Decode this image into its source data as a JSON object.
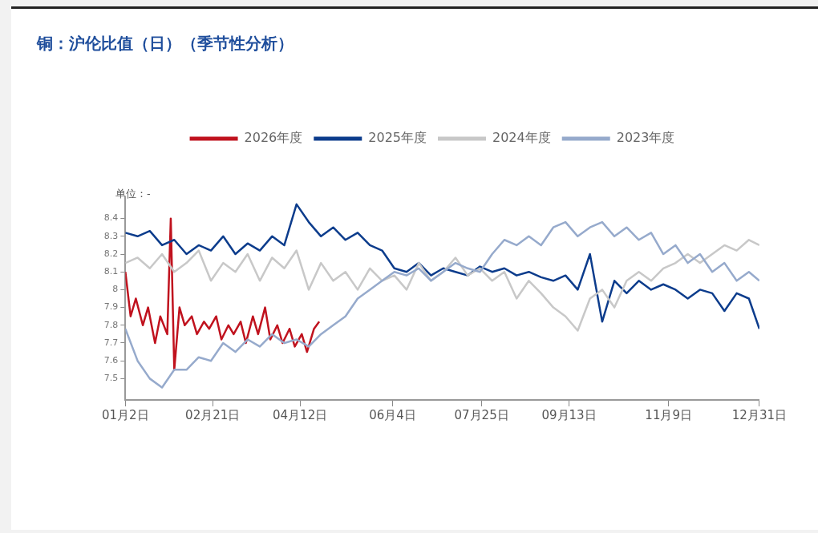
{
  "chart_data": {
    "type": "line",
    "title": "铜：沪伦比值（日）（季节性分析）",
    "annotations": [
      "单位：-"
    ],
    "x": [
      "--01-02",
      "--01-09",
      "--01-16",
      "--01-23",
      "--01-30",
      "--02-06",
      "--02-13",
      "--02-20",
      "--02-27",
      "--03-06",
      "--03-13",
      "--03-20",
      "--03-27",
      "--04-03",
      "--04-10",
      "--04-17",
      "--04-24",
      "--05-01",
      "--05-08",
      "--05-15",
      "--05-22",
      "--05-29",
      "--06-05",
      "--06-12",
      "--06-19",
      "--06-26",
      "--07-03",
      "--07-10",
      "--07-17",
      "--07-24",
      "--07-31",
      "--08-07",
      "--08-14",
      "--08-21",
      "--08-28",
      "--09-04",
      "--09-11",
      "--09-18",
      "--09-25",
      "--10-02",
      "--10-09",
      "--10-16",
      "--10-23",
      "--10-30",
      "--11-06",
      "--11-13",
      "--11-20",
      "--11-27",
      "--12-04",
      "--12-11",
      "--12-18",
      "--12-25",
      "--12-31"
    ],
    "series": [
      {
        "name": "2026年度",
        "color": "#c0121e",
        "x": [
          "--01-02",
          "--01-05",
          "--01-08",
          "--01-12",
          "--01-15",
          "--01-19",
          "--01-22",
          "--01-26",
          "--01-28",
          "--01-30",
          "--02-02",
          "--02-05",
          "--02-09",
          "--02-12",
          "--02-16",
          "--02-19",
          "--02-23",
          "--02-26",
          "--03-02",
          "--03-05",
          "--03-09",
          "--03-12",
          "--03-16",
          "--03-19",
          "--03-23",
          "--03-26",
          "--03-30",
          "--04-02",
          "--04-06",
          "--04-09",
          "--04-13",
          "--04-16",
          "--04-20",
          "--04-23"
        ],
        "values": [
          8.1,
          7.85,
          7.95,
          7.8,
          7.9,
          7.7,
          7.85,
          7.75,
          8.4,
          7.55,
          7.9,
          7.8,
          7.85,
          7.75,
          7.82,
          7.78,
          7.85,
          7.72,
          7.8,
          7.75,
          7.82,
          7.7,
          7.85,
          7.75,
          7.9,
          7.72,
          7.8,
          7.7,
          7.78,
          7.68,
          7.75,
          7.65,
          7.78,
          7.82
        ]
      },
      {
        "name": "2025年度",
        "color": "#0c3c8c",
        "values": [
          8.32,
          8.3,
          8.33,
          8.25,
          8.28,
          8.2,
          8.25,
          8.22,
          8.3,
          8.2,
          8.26,
          8.22,
          8.3,
          8.25,
          8.48,
          8.38,
          8.3,
          8.35,
          8.28,
          8.32,
          8.25,
          8.22,
          8.12,
          8.1,
          8.15,
          8.08,
          8.12,
          8.1,
          8.08,
          8.13,
          8.1,
          8.12,
          8.08,
          8.1,
          8.07,
          8.05,
          8.08,
          8.0,
          8.2,
          7.82,
          8.05,
          7.98,
          8.05,
          8.0,
          8.03,
          8.0,
          7.95,
          8.0,
          7.98,
          7.88,
          7.98,
          7.95,
          7.78
        ]
      },
      {
        "name": "2024年度",
        "color": "#c8c8c8",
        "values": [
          8.15,
          8.18,
          8.12,
          8.2,
          8.1,
          8.15,
          8.22,
          8.05,
          8.15,
          8.1,
          8.2,
          8.05,
          8.18,
          8.12,
          8.22,
          8.0,
          8.15,
          8.05,
          8.1,
          8.0,
          8.12,
          8.05,
          8.08,
          8.0,
          8.15,
          8.05,
          8.1,
          8.18,
          8.08,
          8.12,
          8.05,
          8.1,
          7.95,
          8.05,
          7.98,
          7.9,
          7.85,
          7.77,
          7.95,
          8.0,
          7.9,
          8.05,
          8.1,
          8.05,
          8.12,
          8.15,
          8.2,
          8.15,
          8.2,
          8.25,
          8.22,
          8.28,
          8.25
        ]
      },
      {
        "name": "2023年度",
        "color": "#96aacc",
        "values": [
          7.78,
          7.6,
          7.5,
          7.45,
          7.55,
          7.55,
          7.62,
          7.6,
          7.7,
          7.65,
          7.72,
          7.68,
          7.75,
          7.7,
          7.72,
          7.68,
          7.75,
          7.8,
          7.85,
          7.95,
          8.0,
          8.05,
          8.1,
          8.08,
          8.12,
          8.05,
          8.1,
          8.15,
          8.12,
          8.1,
          8.2,
          8.28,
          8.25,
          8.3,
          8.25,
          8.35,
          8.38,
          8.3,
          8.35,
          8.38,
          8.3,
          8.35,
          8.28,
          8.32,
          8.2,
          8.25,
          8.15,
          8.2,
          8.1,
          8.15,
          8.05,
          8.1,
          8.05
        ]
      }
    ],
    "xlim": [
      "--01-02",
      "--12-31"
    ],
    "xticks": [
      {
        "value": "--01-02",
        "label": "01月2日"
      },
      {
        "value": "--02-21",
        "label": "02月21日"
      },
      {
        "value": "--04-12",
        "label": "04月12日"
      },
      {
        "value": "--06-04",
        "label": "06月4日"
      },
      {
        "value": "--07-25",
        "label": "07月25日"
      },
      {
        "value": "--09-13",
        "label": "09月13日"
      },
      {
        "value": "--11-09",
        "label": "11月9日"
      },
      {
        "value": "--12-31",
        "label": "12月31日"
      }
    ],
    "ylim": [
      7.38,
      8.52
    ],
    "yticks": [
      7.5,
      7.6,
      7.7,
      7.8,
      7.9,
      8.0,
      8.1,
      8.2,
      8.3,
      8.4
    ],
    "legend": "top",
    "grid": false,
    "marker": "none"
  }
}
